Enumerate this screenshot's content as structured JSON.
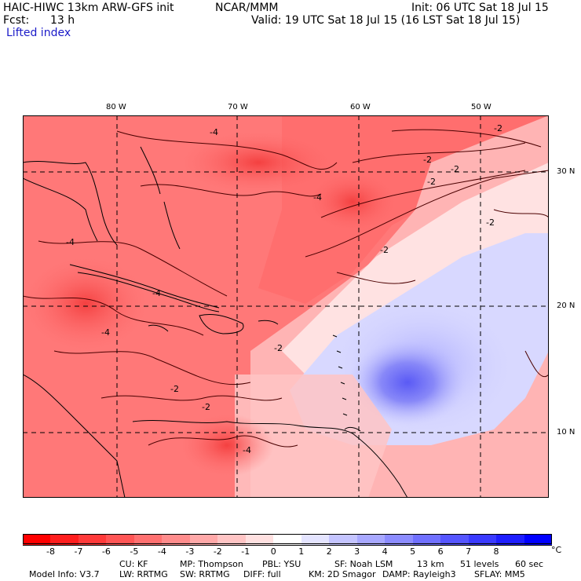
{
  "header": {
    "line1_left": "HAIC-HIWC 13km ARW-GFS init",
    "line1_mid": "NCAR/MMM",
    "line1_right": "Init: 06 UTC Sat 18 Jul 15",
    "line2_left_label": "Fcst:",
    "line2_left_value": "13 h",
    "line2_right": "Valid: 19 UTC Sat 18 Jul 15 (16 LST Sat 18 Jul 15)",
    "field_name": "Lifted index"
  },
  "map": {
    "longitude_labels": [
      "80 W",
      "70 W",
      "60 W",
      "50 W"
    ],
    "latitude_labels": [
      "30 N",
      "20 N",
      "10 N"
    ],
    "contour_labels": [
      "-4",
      "-4",
      "-2",
      "-2",
      "-2",
      "-2",
      "-2",
      "-4",
      "-4",
      "-4",
      "-2",
      "-2",
      "-4",
      "-2",
      "-2"
    ]
  },
  "colorbar": {
    "labels": [
      "-8",
      "-7",
      "-6",
      "-5",
      "-4",
      "-3",
      "-2",
      "-1",
      "0",
      "1",
      "2",
      "3",
      "4",
      "5",
      "6",
      "7",
      "8"
    ],
    "unit": "°C",
    "colors": [
      "#ff0000",
      "#ff1e1e",
      "#ff3a3a",
      "#ff5555",
      "#ff7070",
      "#ff8c8c",
      "#ffa8a8",
      "#ffc4c4",
      "#ffe0e0",
      "#ffffff",
      "#e4e4ff",
      "#c4c4ff",
      "#a8a8ff",
      "#8c8cff",
      "#7070ff",
      "#5555ff",
      "#3a3aff",
      "#1e1eff",
      "#0000ff"
    ]
  },
  "model_info": {
    "line1": [
      "Model Info: V3.7",
      "CU: KF",
      "MP: Thompson",
      "PBL: YSU",
      "SF: Noah LSM",
      "13 km",
      "51 levels",
      "60 sec"
    ],
    "line2": [
      "LW: RRTMG",
      "SW: RRTMG",
      "DIFF: full",
      "KM: 2D Smagor",
      "DAMP: Rayleigh3",
      "SFLAY: MM5"
    ]
  }
}
